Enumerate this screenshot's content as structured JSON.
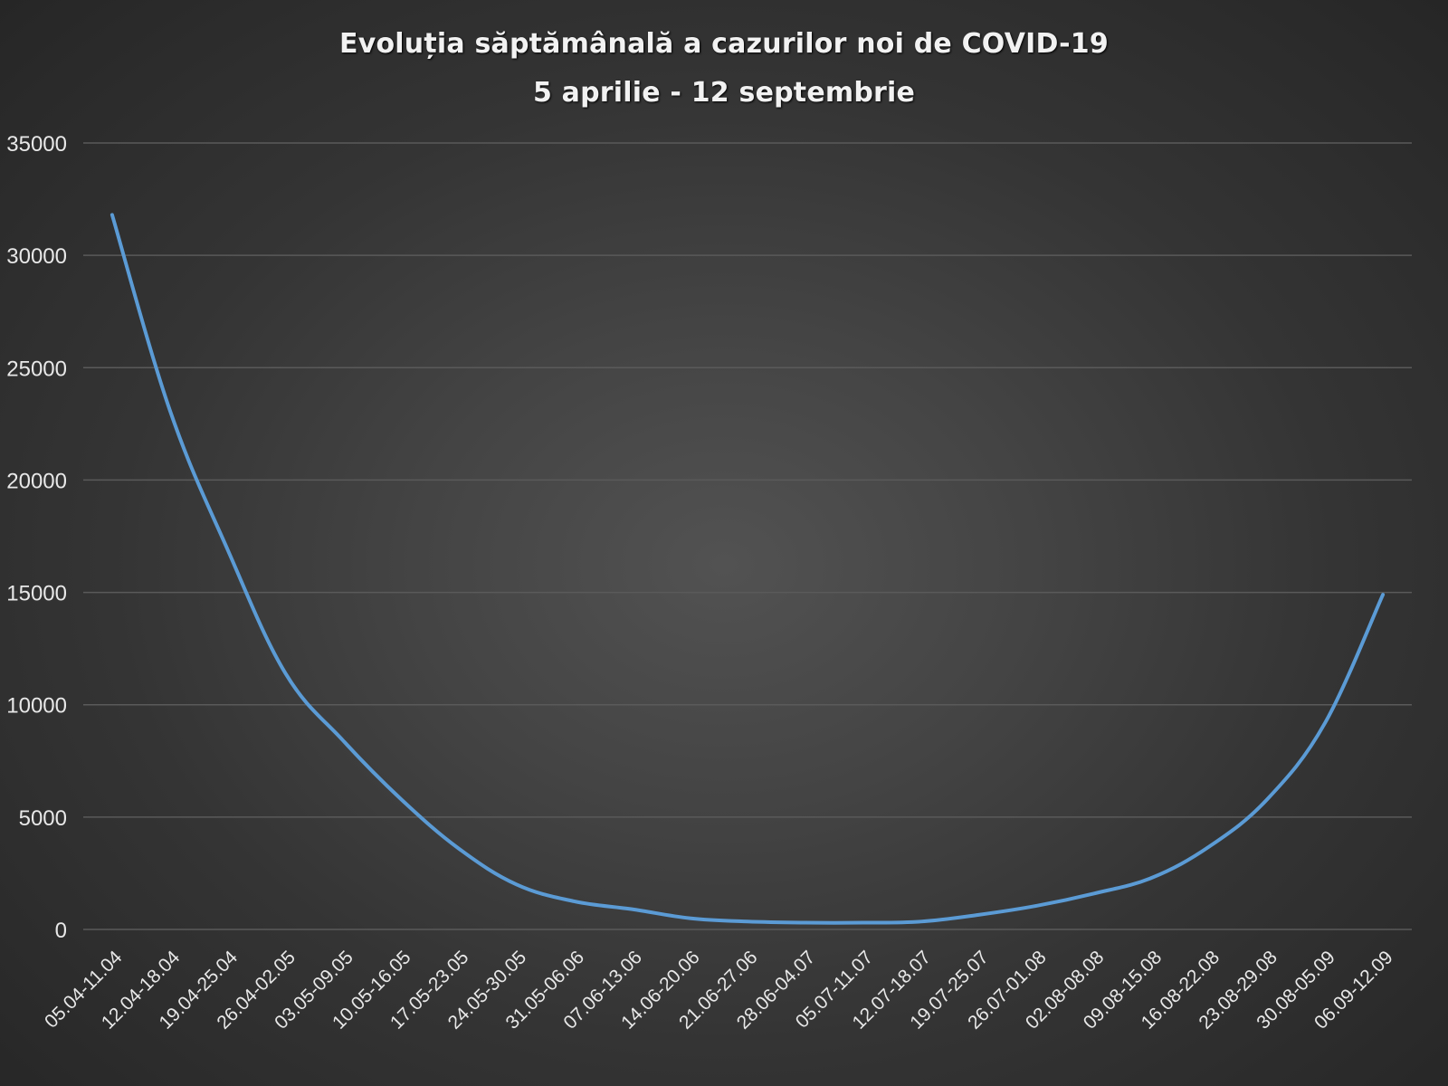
{
  "chart_data": {
    "type": "line",
    "title": "Evoluția săptămânală a cazurilor noi de COVID-19",
    "subtitle": "5 aprilie - 12 septembrie",
    "xlabel": "",
    "ylabel": "",
    "ylim": [
      0,
      35000
    ],
    "yticks": [
      "0",
      "5000",
      "10000",
      "15000",
      "20000",
      "25000",
      "30000",
      "35000"
    ],
    "grid": true,
    "legend": "none",
    "categories": [
      "05.04-11.04",
      "12.04-18.04",
      "19.04-25.04",
      "26.04-02.05",
      "03.05-09.05",
      "10.05-16.05",
      "17.05-23.05",
      "24.05-30.05",
      "31.05-06.06",
      "07.06-13.06",
      "14.06-20.06",
      "21.06-27.06",
      "28.06-04.07",
      "05.07-11.07",
      "12.07-18.07",
      "19.07-25.07",
      "26.07-01.08",
      "02.08-08.08",
      "09.08-15.08",
      "16.08-22.08",
      "23.08-29.08",
      "30.08-05.09",
      "06.09-12.09"
    ],
    "series": [
      {
        "color": "#5b9bd5",
        "values": [
          31800,
          23100,
          16900,
          11400,
          8400,
          5800,
          3600,
          2000,
          1250,
          900,
          500,
          350,
          300,
          300,
          350,
          650,
          1050,
          1600,
          2300,
          3700,
          5800,
          9200,
          14900
        ]
      }
    ],
    "colors": {
      "gridline": "#5a5a5a",
      "text": "#e8e8e8"
    }
  }
}
